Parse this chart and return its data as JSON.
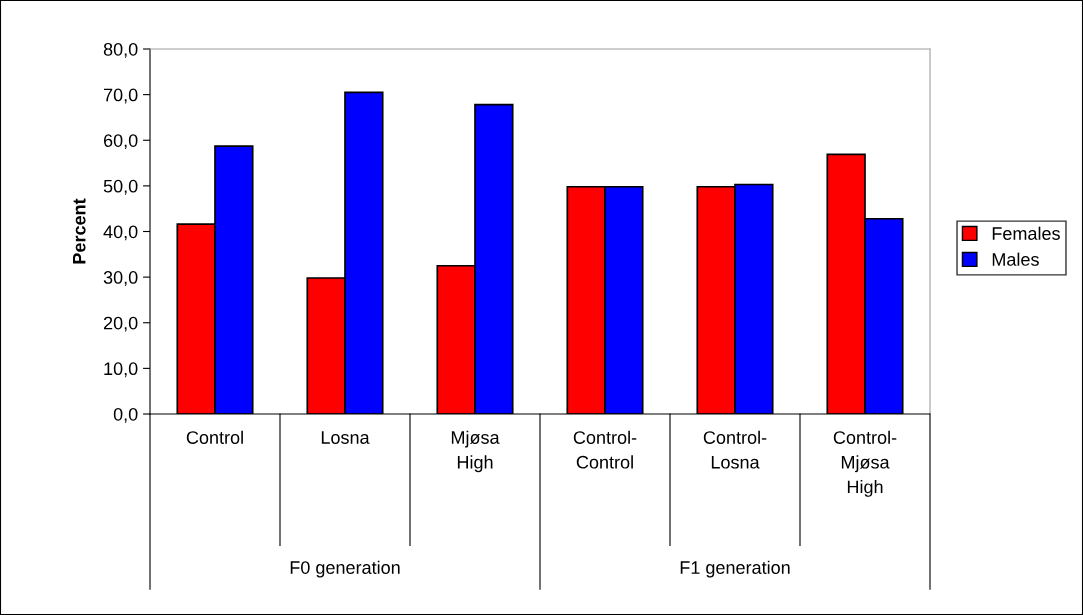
{
  "chart_data": {
    "type": "bar",
    "ylabel": "Percent",
    "categories": [
      "Control",
      "Losna",
      "Mjøsa\nHigh",
      "Control-\nControl",
      "Control-\nLosna",
      "Control-\nMjøsa\nHigh"
    ],
    "series": [
      {
        "name": "Females",
        "color": "#ff0000",
        "values": [
          41.6,
          29.8,
          32.5,
          49.8,
          49.8,
          56.9
        ]
      },
      {
        "name": "Males",
        "color": "#0000ff",
        "values": [
          58.7,
          70.5,
          67.8,
          49.8,
          50.3,
          42.8
        ]
      }
    ],
    "ylim": [
      0,
      80
    ],
    "yticks": [
      {
        "value": 0,
        "label": "0,0"
      },
      {
        "value": 10,
        "label": "10,0"
      },
      {
        "value": 20,
        "label": "20,0"
      },
      {
        "value": 30,
        "label": "30,0"
      },
      {
        "value": 40,
        "label": "40,0"
      },
      {
        "value": 50,
        "label": "50,0"
      },
      {
        "value": 60,
        "label": "60,0"
      },
      {
        "value": 70,
        "label": "70,0"
      },
      {
        "value": 80,
        "label": "80,0"
      }
    ],
    "annotations": [
      "F0 generation",
      "F1 generation"
    ],
    "legend": "right",
    "grid": false
  }
}
